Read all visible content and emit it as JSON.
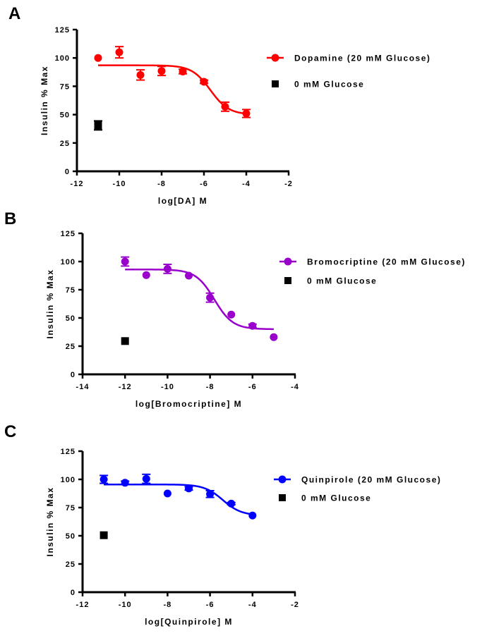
{
  "chart_data": [
    {
      "panel": "A",
      "type": "scatter",
      "title": "",
      "xlabel": "log[DA] M",
      "ylabel": "Insulin % Max",
      "xlim": [
        -12,
        -2
      ],
      "ylim": [
        0,
        125
      ],
      "xticks": [
        -12,
        -10,
        -8,
        -6,
        -4,
        -2
      ],
      "yticks": [
        0,
        25,
        50,
        75,
        100,
        125
      ],
      "grid": false,
      "legend_position": "right",
      "series": [
        {
          "name": "Dopamine (20 mM Glucose)",
          "color": "#ff0000",
          "marker": "circle",
          "fit": {
            "top": 93.5,
            "bottom": 50,
            "logEC50": -5.7,
            "hill": 1,
            "xrange": [
              -11,
              -4
            ]
          },
          "x": [
            -11,
            -10,
            -9,
            -8,
            -7,
            -6,
            -5,
            -4
          ],
          "y": [
            100,
            105,
            85,
            88.5,
            88,
            79,
            57,
            51
          ],
          "err": [
            0,
            5,
            4.5,
            4,
            2,
            1.5,
            4,
            3.5
          ]
        },
        {
          "name": "0 mM Glucose",
          "color": "#000000",
          "marker": "square",
          "x": [
            -11
          ],
          "y": [
            40.5
          ],
          "err": [
            4
          ]
        }
      ]
    },
    {
      "panel": "B",
      "type": "scatter",
      "title": "",
      "xlabel": "log[Bromocriptine] M",
      "ylabel": "Insulin % Max",
      "xlim": [
        -14,
        -4
      ],
      "ylim": [
        0,
        125
      ],
      "xticks": [
        -14,
        -12,
        -10,
        -8,
        -6,
        -4
      ],
      "yticks": [
        0,
        25,
        50,
        75,
        100,
        125
      ],
      "grid": false,
      "legend_position": "right",
      "series": [
        {
          "name": "Bromocriptine (20 mM Glucose)",
          "color": "#9900cc",
          "marker": "circle",
          "fit": {
            "top": 93,
            "bottom": 40,
            "logEC50": -7.8,
            "hill": 1,
            "xrange": [
              -12,
              -5
            ]
          },
          "x": [
            -12,
            -11,
            -10,
            -9,
            -8,
            -7,
            -6,
            -5
          ],
          "y": [
            100,
            88,
            93.5,
            87.5,
            68,
            53,
            43,
            33
          ],
          "err": [
            4,
            0,
            4,
            0,
            4,
            0,
            1.5,
            0
          ]
        },
        {
          "name": "0 mM Glucose",
          "color": "#000000",
          "marker": "square",
          "x": [
            -12
          ],
          "y": [
            29.5
          ],
          "err": [
            0
          ]
        }
      ]
    },
    {
      "panel": "C",
      "type": "scatter",
      "title": "",
      "xlabel": "log[Quinpirole] M",
      "ylabel": "Insulin % Max",
      "xlim": [
        -12,
        -2
      ],
      "ylim": [
        0,
        125
      ],
      "xticks": [
        -12,
        -10,
        -8,
        -6,
        -4,
        -2
      ],
      "yticks": [
        0,
        25,
        50,
        75,
        100,
        125
      ],
      "grid": false,
      "legend_position": "right",
      "series": [
        {
          "name": "Quinpirole (20 mM Glucose)",
          "color": "#0000ff",
          "marker": "circle",
          "fit": {
            "top": 95.5,
            "bottom": 68,
            "logEC50": -5.4,
            "hill": 1,
            "xrange": [
              -11,
              -4
            ]
          },
          "x": [
            -11,
            -10,
            -9,
            -8,
            -7,
            -6,
            -5,
            -4
          ],
          "y": [
            100,
            97,
            100.5,
            87.5,
            92,
            87,
            78.5,
            68
          ],
          "err": [
            3.5,
            1.5,
            4,
            0,
            1.5,
            3,
            1,
            0
          ]
        },
        {
          "name": "0 mM Glucose",
          "color": "#000000",
          "marker": "square",
          "x": [
            -11
          ],
          "y": [
            50.5
          ],
          "err": [
            0
          ]
        }
      ]
    }
  ]
}
